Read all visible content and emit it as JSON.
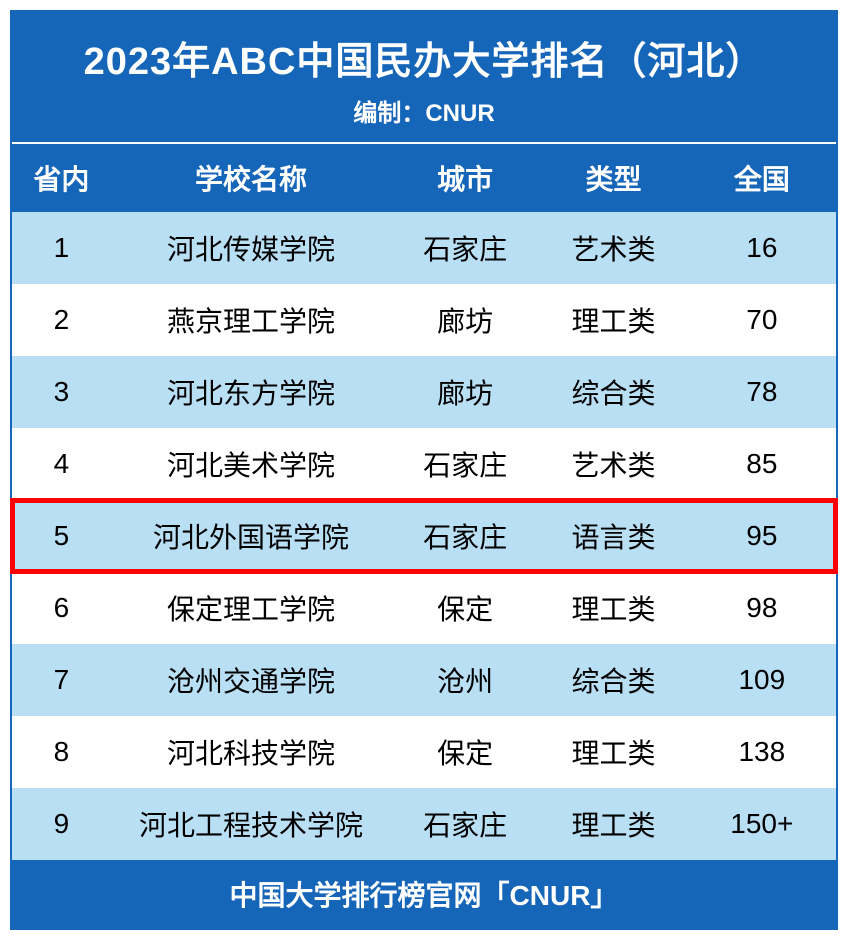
{
  "header": {
    "title": "2023年ABC中国民办大学排名（河北）",
    "subtitle": "编制：CNUR"
  },
  "columns": {
    "rank": "省内",
    "name": "学校名称",
    "city": "城市",
    "type": "类型",
    "national": "全国"
  },
  "rows": [
    {
      "rank": "1",
      "name": "河北传媒学院",
      "city": "石家庄",
      "type": "艺术类",
      "national": "16",
      "highlight": false
    },
    {
      "rank": "2",
      "name": "燕京理工学院",
      "city": "廊坊",
      "type": "理工类",
      "national": "70",
      "highlight": false
    },
    {
      "rank": "3",
      "name": "河北东方学院",
      "city": "廊坊",
      "type": "综合类",
      "national": "78",
      "highlight": false
    },
    {
      "rank": "4",
      "name": "河北美术学院",
      "city": "石家庄",
      "type": "艺术类",
      "national": "85",
      "highlight": false
    },
    {
      "rank": "5",
      "name": "河北外国语学院",
      "city": "石家庄",
      "type": "语言类",
      "national": "95",
      "highlight": true
    },
    {
      "rank": "6",
      "name": "保定理工学院",
      "city": "保定",
      "type": "理工类",
      "national": "98",
      "highlight": false
    },
    {
      "rank": "7",
      "name": "沧州交通学院",
      "city": "沧州",
      "type": "综合类",
      "national": "109",
      "highlight": false
    },
    {
      "rank": "8",
      "name": "河北科技学院",
      "city": "保定",
      "type": "理工类",
      "national": "138",
      "highlight": false
    },
    {
      "rank": "9",
      "name": "河北工程技术学院",
      "city": "石家庄",
      "type": "理工类",
      "national": "150+",
      "highlight": false
    }
  ],
  "footer": "中国大学排行榜官网「CNUR」",
  "colors": {
    "primary": "#1565b8",
    "rowOdd": "#b9dff4",
    "rowEven": "#ffffff",
    "highlightBorder": "#ff0000",
    "textDark": "#000000",
    "textLight": "#ffffff"
  },
  "font": {
    "titleSize": 38,
    "subtitleSize": 24,
    "headerSize": 28,
    "cellSize": 28,
    "footerSize": 28
  }
}
